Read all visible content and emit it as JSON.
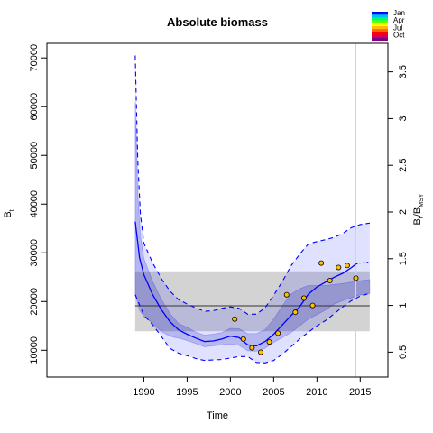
{
  "chart_data": {
    "type": "line",
    "title": "Absolute biomass",
    "xlabel": "Time",
    "ylabel": "B_t",
    "y2label": "B_t/B_MSY",
    "xlim": [
      1978.8,
      2018.2
    ],
    "ylim": [
      4500,
      73000
    ],
    "y2lim": [
      0.2333,
      3.8053
    ],
    "bmsy": 19120,
    "x_ticks": [
      "1990",
      "1995",
      "2000",
      "2005",
      "2010",
      "2015"
    ],
    "y_ticks": [
      "10000",
      "20000",
      "30000",
      "40000",
      "50000",
      "60000",
      "70000"
    ],
    "y2_ticks": [
      "0.5",
      "1",
      "1.5",
      "2",
      "2.5",
      "3",
      "3.5"
    ],
    "grid": false,
    "shaded_band": {
      "y_low": 13900,
      "y_high": 26200,
      "x_start": 1989.0,
      "x_end": 2016.1
    },
    "vline_x": 2014.5,
    "legend": {
      "position": "top-right",
      "entries": [
        "Jan",
        "Apr",
        "Jul",
        "Oct"
      ]
    },
    "colors": {
      "estimate": "#0000ff",
      "band": "#d3d3d3",
      "ci": "#dcdcff",
      "point_fill": "#ffc000",
      "vline": "#d3d3d3",
      "bmsy_line": "#333333"
    },
    "series": [
      {
        "role": "estimate",
        "x": [
          1989.0,
          1989.5,
          1990.0,
          1991.0,
          1992.0,
          1993.0,
          1994.0,
          1995.0,
          1996.0,
          1997.0,
          1998.0,
          1999.0,
          2000.0,
          2001.0,
          2002.0,
          2003.0,
          2004.0,
          2005.0,
          2006.0,
          2007.0,
          2008.0,
          2009.0,
          2010.0,
          2011.0,
          2012.0,
          2013.0,
          2014.0,
          2014.5
        ],
        "y": [
          36400,
          29000,
          25500,
          21500,
          18400,
          15900,
          14200,
          13300,
          12500,
          11800,
          11900,
          12300,
          12900,
          12600,
          11100,
          10900,
          11800,
          13300,
          15200,
          17100,
          18900,
          21500,
          23000,
          24000,
          25000,
          25800,
          27000,
          27700
        ]
      },
      {
        "role": "estimate-forecast",
        "x": [
          2014.5,
          2015.0,
          2015.5,
          2016.1
        ],
        "y": [
          27700,
          27900,
          28000,
          28100
        ]
      },
      {
        "role": "ci-lower",
        "x": [
          1989.0,
          1989.5,
          1990.0,
          1991.0,
          1992.0,
          1993.0,
          1994.0,
          1995.0,
          1996.0,
          1997.0,
          1998.0,
          1999.0,
          2000.0,
          2001.0,
          2002.0,
          2003.0,
          2004.0,
          2005.0,
          2006.0,
          2007.0,
          2008.0,
          2009.0,
          2010.0,
          2011.0,
          2012.0,
          2013.0,
          2014.0,
          2015.0,
          2016.1
        ],
        "y": [
          21600,
          18200,
          16900,
          15600,
          13900,
          12900,
          12500,
          12000,
          11400,
          10700,
          10900,
          11100,
          11300,
          11000,
          9900,
          9800,
          10400,
          11600,
          12600,
          13600,
          15000,
          16400,
          17300,
          18300,
          19500,
          20200,
          20800,
          21400,
          21600
        ]
      },
      {
        "role": "ci-upper",
        "x": [
          1989.0,
          1989.3,
          1989.6,
          1990.0,
          1991.0,
          1992.0,
          1993.0,
          1994.0,
          1995.0,
          1996.0,
          1997.0,
          1998.0,
          1999.0,
          2000.0,
          2001.0,
          2002.0,
          2003.0,
          2004.0,
          2005.0,
          2006.0,
          2007.0,
          2008.0,
          2009.0,
          2010.0,
          2011.0,
          2012.0,
          2013.0,
          2014.0,
          2015.0,
          2016.1
        ],
        "y": [
          61000,
          42000,
          33500,
          28800,
          24200,
          20500,
          17600,
          15500,
          14700,
          13700,
          13100,
          13300,
          13600,
          14500,
          14400,
          13400,
          13400,
          14200,
          16400,
          19100,
          21500,
          22600,
          23300,
          23300,
          23300,
          23500,
          23700,
          24000,
          24300,
          24500
        ]
      },
      {
        "role": "pi-lower",
        "x": [
          1989.0,
          1990.0,
          1991.0,
          1992.0,
          1993.0,
          1994.0,
          1995.0,
          1996.0,
          1997.0,
          1998.0,
          1999.0,
          2000.0,
          2001.0,
          2002.0,
          2003.0,
          2004.0,
          2005.0,
          2006.0,
          2007.0,
          2008.0,
          2009.0,
          2010.0,
          2011.0,
          2012.0,
          2013.0,
          2014.0,
          2015.0,
          2016.1
        ],
        "y": [
          21400,
          17200,
          15300,
          12900,
          10400,
          9400,
          8900,
          8300,
          7900,
          8000,
          8100,
          8400,
          8700,
          8700,
          7500,
          7400,
          7900,
          9200,
          10700,
          12300,
          13700,
          15000,
          16100,
          17500,
          18900,
          20200,
          21100,
          21700
        ]
      },
      {
        "role": "pi-upper",
        "x": [
          1989.0,
          1989.3,
          1989.6,
          1990.0,
          1991.0,
          1992.0,
          1993.0,
          1994.0,
          1995.0,
          1996.0,
          1997.0,
          1998.0,
          1999.0,
          2000.0,
          2001.0,
          2002.0,
          2003.0,
          2004.0,
          2005.0,
          2006.0,
          2007.0,
          2008.0,
          2009.0,
          2010.0,
          2011.0,
          2012.0,
          2013.0,
          2014.0,
          2015.0,
          2016.1
        ],
        "y": [
          70500,
          49000,
          38000,
          32000,
          28000,
          24800,
          22200,
          20400,
          19500,
          18700,
          18000,
          18100,
          18600,
          18900,
          18600,
          17400,
          17400,
          18700,
          21300,
          24100,
          27300,
          29700,
          31800,
          32300,
          32700,
          33200,
          34000,
          35200,
          35800,
          36100
        ]
      },
      {
        "role": "observations",
        "x": [
          2000.5,
          2001.5,
          2002.5,
          2003.5,
          2004.5,
          2005.5,
          2006.5,
          2007.5,
          2008.5,
          2009.5,
          2010.5,
          2011.5,
          2012.5,
          2013.5,
          2014.5
        ],
        "y": [
          16400,
          12300,
          10500,
          9600,
          11700,
          13500,
          21400,
          17800,
          20700,
          19200,
          27900,
          24300,
          27000,
          27400,
          24800
        ]
      }
    ]
  }
}
